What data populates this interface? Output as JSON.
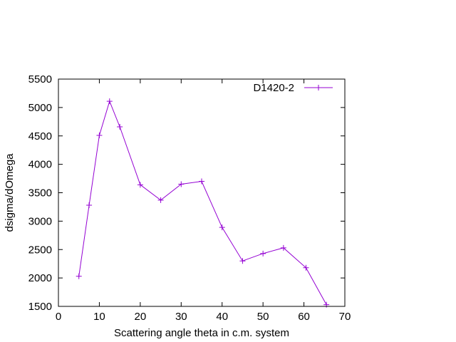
{
  "chart_data": {
    "type": "line",
    "title": "",
    "xlabel": "Scattering angle theta in c.m. system",
    "ylabel": "dsigma/dOmega",
    "xlim": [
      0,
      70
    ],
    "ylim": [
      1500,
      5500
    ],
    "xticks": [
      0,
      10,
      20,
      30,
      40,
      50,
      60,
      70
    ],
    "yticks": [
      1500,
      2000,
      2500,
      3000,
      3500,
      4000,
      4500,
      5000,
      5500
    ],
    "xtick_labels": [
      "0",
      "10",
      "20",
      "30",
      "40",
      "50",
      "60",
      "70"
    ],
    "ytick_labels": [
      "1500",
      "2000",
      "2500",
      "3000",
      "3500",
      "4000",
      "4500",
      "5000",
      "5500"
    ],
    "grid": false,
    "legend_position": "top-right",
    "series": [
      {
        "name": "D1420-2",
        "color": "#9400d3",
        "marker": "plus",
        "x": [
          5,
          7.5,
          10,
          12.5,
          15,
          20,
          25,
          30,
          35,
          40,
          45,
          50,
          55,
          60.5,
          65.5
        ],
        "y": [
          2030,
          3280,
          4510,
          5110,
          4660,
          3640,
          3370,
          3650,
          3700,
          2890,
          2300,
          2430,
          2530,
          2180,
          1530
        ]
      }
    ]
  }
}
